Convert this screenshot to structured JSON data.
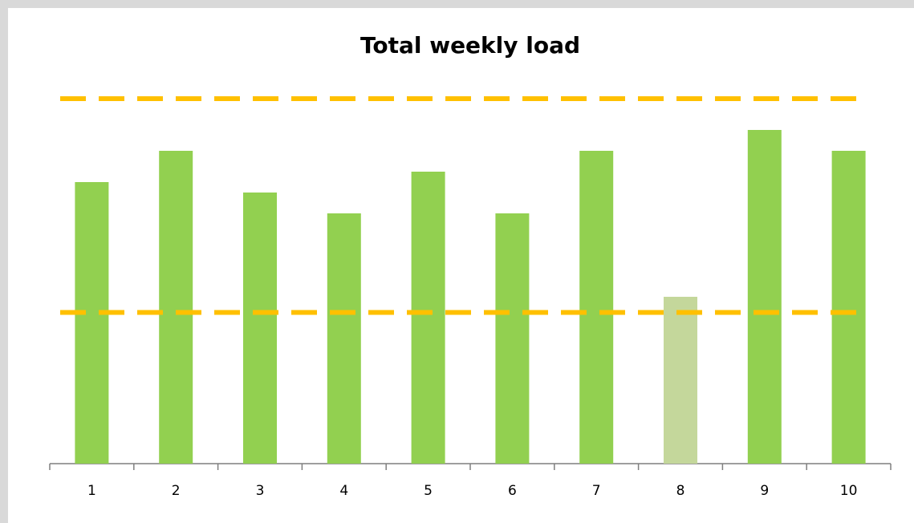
{
  "chart_data": {
    "type": "bar",
    "title": "Total weekly load",
    "categories": [
      "1",
      "2",
      "3",
      "4",
      "5",
      "6",
      "7",
      "8",
      "9",
      "10"
    ],
    "values": [
      27,
      30,
      26,
      24,
      28,
      24,
      30,
      16,
      32,
      30
    ],
    "colors": [
      "#92d050",
      "#92d050",
      "#92d050",
      "#92d050",
      "#92d050",
      "#92d050",
      "#92d050",
      "#c4d79b",
      "#92d050",
      "#92d050"
    ],
    "reference_lines": [
      {
        "value": 35,
        "color": "#ffc000"
      },
      {
        "value": 14.5,
        "color": "#ffc000"
      }
    ],
    "ylim": [
      0,
      37
    ]
  }
}
